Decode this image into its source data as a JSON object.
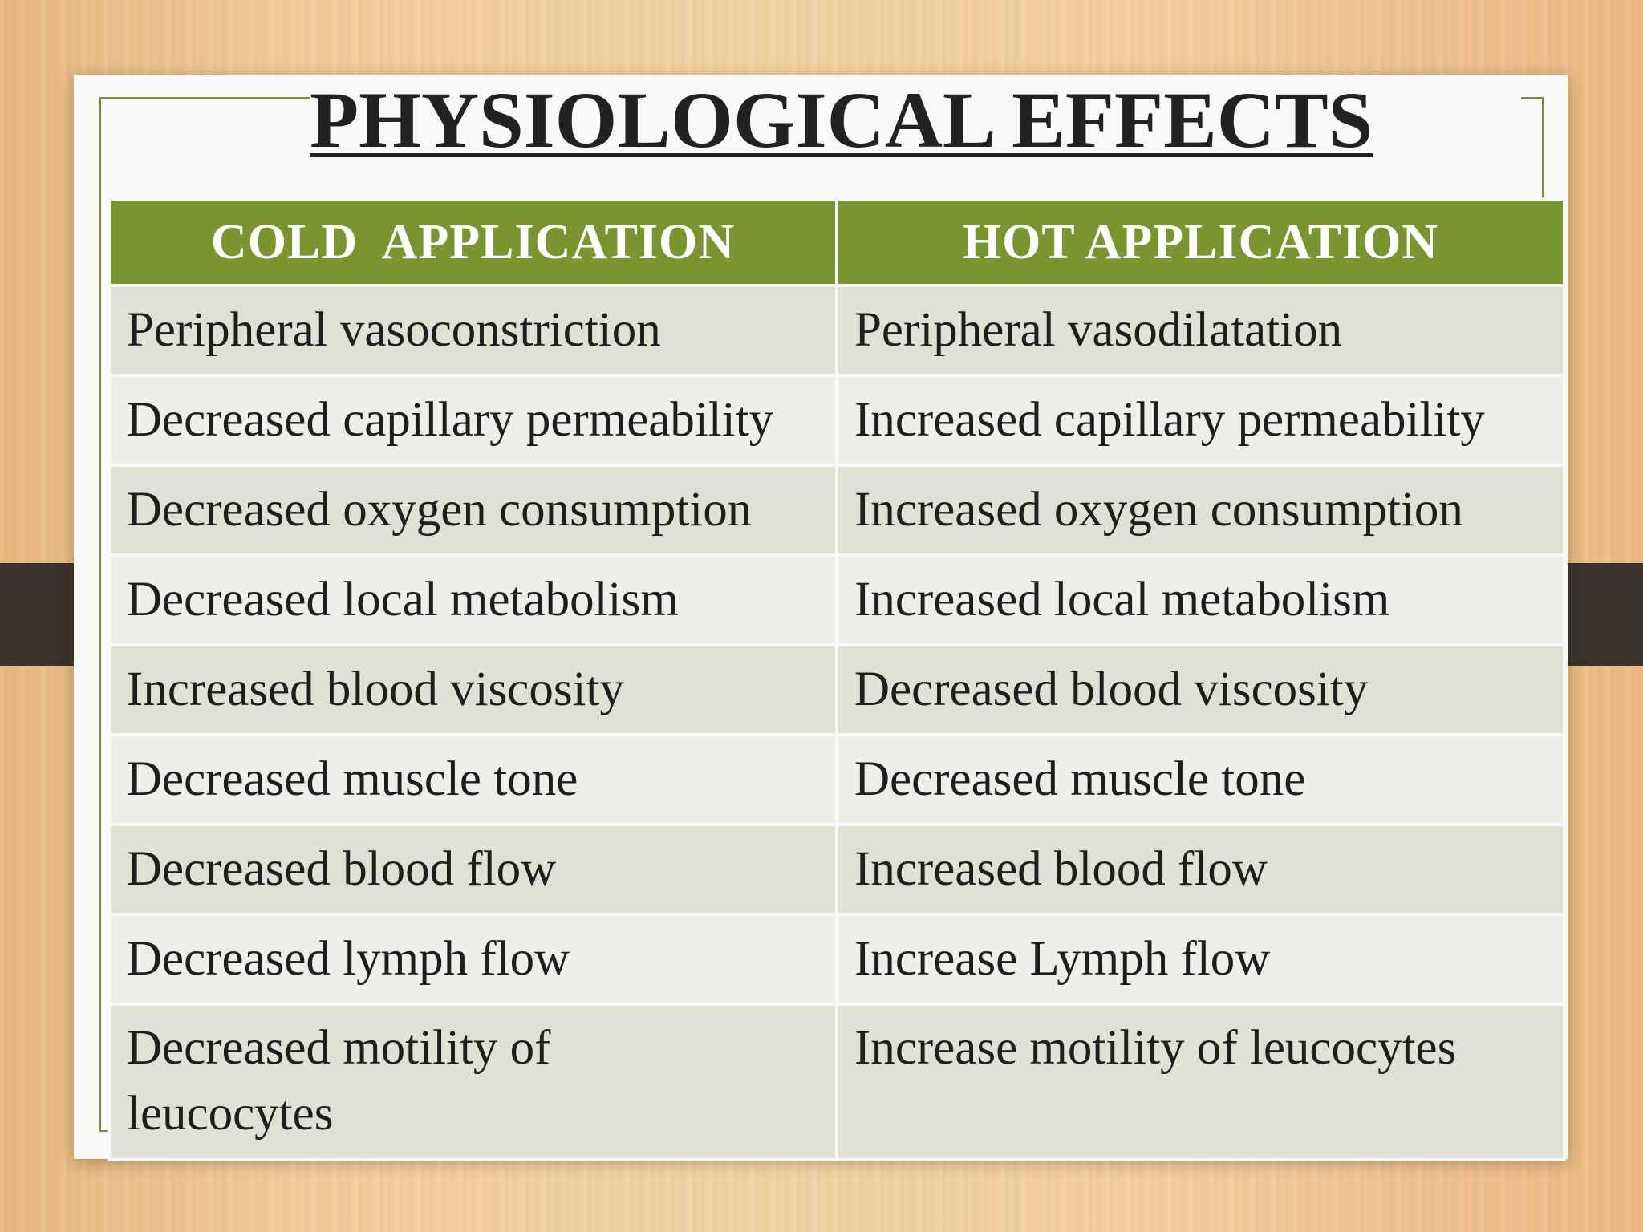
{
  "slide": {
    "title": "PHYSIOLOGICAL EFFECTS"
  },
  "table": {
    "headers": [
      "COLD  APPLICATION",
      "HOT APPLICATION"
    ],
    "rows": [
      [
        "Peripheral vasoconstriction",
        "Peripheral vasodilatation"
      ],
      [
        "Decreased capillary permeability",
        "Increased capillary permeability"
      ],
      [
        "Decreased oxygen consumption",
        "Increased oxygen consumption"
      ],
      [
        "Decreased local metabolism",
        "Increased local metabolism"
      ],
      [
        "Increased blood viscosity",
        "Decreased blood viscosity"
      ],
      [
        "Decreased muscle tone",
        "Decreased muscle tone"
      ],
      [
        "Decreased blood flow",
        "Increased blood flow"
      ],
      [
        "Decreased lymph flow",
        "Increase Lymph flow"
      ],
      [
        "Decreased motility of leucocytes",
        "Increase motility of  leucocytes"
      ]
    ]
  },
  "colors": {
    "header_green": "#7a9430",
    "row_shaded": "#dde2d4",
    "row_light": "#eeeeeb",
    "frame_line": "#7a8e32",
    "strap": "#3a322c"
  }
}
